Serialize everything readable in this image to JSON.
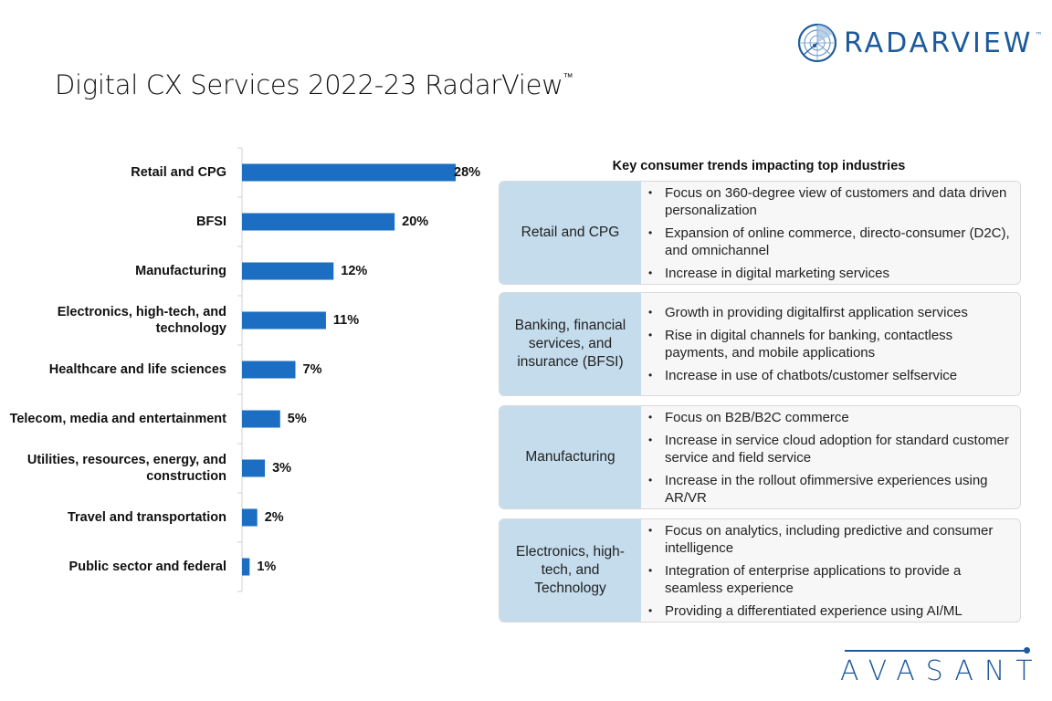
{
  "header": {
    "title": "Digital CX Services 2022-23 RadarView",
    "title_tm": "™",
    "brand_logo_text": "RADARVIEW",
    "brand_logo_tm": "™",
    "brand_icon": "radar-icon"
  },
  "footer": {
    "logo_text": "AVASANT"
  },
  "colors": {
    "bar": "#1b6ec2",
    "brand": "#1d5a9a",
    "industry_cell": "#c5dced",
    "points_cell": "#f7f7f7"
  },
  "chart_data": {
    "type": "bar",
    "orientation": "horizontal",
    "title": "",
    "xlabel": "",
    "ylabel": "",
    "categories": [
      "Retail and CPG",
      "BFSI",
      "Manufacturing",
      "Electronics, high-tech, and technology",
      "Healthcare and life sciences",
      "Telecom, media and entertainment",
      "Utilities, resources, energy, and construction",
      "Travel and transportation",
      "Public sector and federal"
    ],
    "values": [
      28,
      20,
      12,
      11,
      7,
      5,
      3,
      2,
      1
    ],
    "value_labels": [
      "28%",
      "20%",
      "12%",
      "11%",
      "7%",
      "5%",
      "3%",
      "2%",
      "1%"
    ],
    "unit": "%",
    "xlim": [
      0,
      28
    ],
    "grid": false,
    "legend": "none"
  },
  "trends": {
    "heading": "Key consumer trends impacting top industries",
    "blocks": [
      {
        "industry": "Retail and CPG",
        "points": [
          "Focus on 360-degree view of customers and data driven personalization",
          "Expansion of online commerce, directo-consumer (D2C), and omnichannel",
          "Increase in digital marketing services"
        ]
      },
      {
        "industry": "Banking, financial services, and insurance (BFSI)",
        "points": [
          "Growth in providing digitalfirst application services",
          "Rise in digital channels for banking, contactless payments, and mobile applications",
          "Increase in use of chatbots/customer selfservice"
        ]
      },
      {
        "industry": "Manufacturing",
        "points": [
          "Focus on B2B/B2C commerce",
          "Increase in service cloud adoption for standard customer service and field service",
          "Increase in the rollout ofimmersive experiences using AR/VR"
        ]
      },
      {
        "industry": "Electronics, high-tech, and Technology",
        "points": [
          "Focus on analytics, including predictive and consumer intelligence",
          "Integration of enterprise applications to provide a seamless experience",
          "Providing a differentiated experience using AI/ML"
        ]
      }
    ],
    "bullet": "•"
  }
}
